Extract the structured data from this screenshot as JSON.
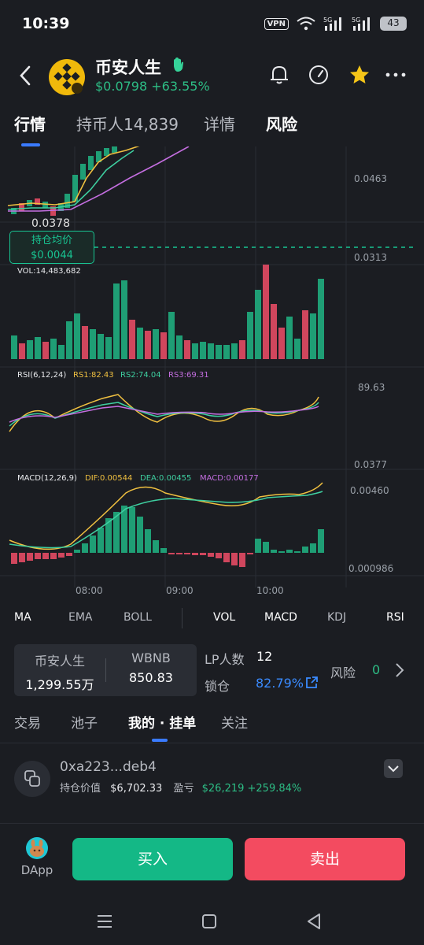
{
  "status_bar": {
    "time": "10:39",
    "vpn": "VPN",
    "net1": "5G",
    "net2": "5G",
    "battery": "43"
  },
  "header": {
    "token_name": "币安人生",
    "price": "$0.0798",
    "change": "+63.55%",
    "colors": {
      "up": "#2dbd85",
      "logo": "#f0b90b"
    }
  },
  "tabs": [
    {
      "label": "行情"
    },
    {
      "label": "持币人14,839"
    },
    {
      "label": "详情"
    },
    {
      "label": "风险"
    }
  ],
  "chart": {
    "price_labels": {
      "high": "0.0463",
      "low": "0.0313",
      "last_low": "0.0378"
    },
    "avg_cost": {
      "title": "持仓均价",
      "value": "$0.0044"
    },
    "vol_label": "VOL:14,483,682",
    "rsi": {
      "title": "RSI(6,12,24)",
      "rs1": "RS1:82.43",
      "rs2": "RS2:74.04",
      "rs3": "RS3:69.31",
      "top": "89.63",
      "bottom": "0.0377"
    },
    "macd": {
      "title": "MACD(12,26,9)",
      "dif": "DIF:0.00544",
      "dea": "DEA:0.00455",
      "macd": "MACD:0.00177",
      "top": "0.00460",
      "bottom": "0.000986"
    },
    "time_labels": [
      "08:00",
      "09:00",
      "10:00"
    ]
  },
  "indicators": [
    "MA",
    "EMA",
    "BOLL",
    "VOL",
    "MACD",
    "KDJ",
    "RSI"
  ],
  "pool": {
    "token_label": "币安人生",
    "token_value": "1,299.55万",
    "pair_label": "WBNB",
    "pair_value": "850.83"
  },
  "lp": {
    "count_label": "LP人数",
    "count_value": "12",
    "lock_label": "锁仓",
    "lock_value": "82.79%",
    "risk_label": "风险",
    "risk_value": "0"
  },
  "subtabs": [
    {
      "label": "交易"
    },
    {
      "label": "池子"
    },
    {
      "label": "我的 · 挂单"
    },
    {
      "label": "关注"
    }
  ],
  "position": {
    "address": "0xa223...deb4",
    "value_label": "持仓价值",
    "value": "$6,702.33",
    "pnl_label": "盈亏",
    "pnl": "$26,219 +259.84%"
  },
  "bottom": {
    "dapp_label": "DApp",
    "buy_label": "买入",
    "sell_label": "卖出"
  }
}
